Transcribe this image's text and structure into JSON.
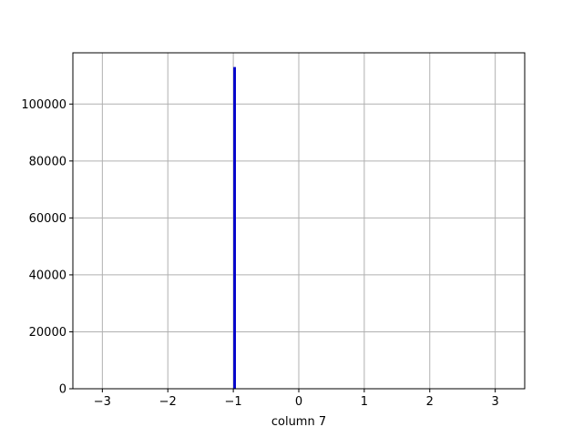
{
  "chart_data": {
    "type": "bar",
    "subtype": "histogram",
    "title": "",
    "xlabel": "column 7",
    "ylabel": "",
    "xlim": [
      -3.45,
      3.45
    ],
    "ylim": [
      0,
      118000
    ],
    "grid": true,
    "legend": "none",
    "x_ticks": [
      {
        "value": -3,
        "label": "−3"
      },
      {
        "value": -2,
        "label": "−2"
      },
      {
        "value": -1,
        "label": "−1"
      },
      {
        "value": 0,
        "label": "0"
      },
      {
        "value": 1,
        "label": "1"
      },
      {
        "value": 2,
        "label": "2"
      },
      {
        "value": 3,
        "label": "3"
      }
    ],
    "y_ticks": [
      {
        "value": 0,
        "label": "0"
      },
      {
        "value": 20000,
        "label": "20000"
      },
      {
        "value": 40000,
        "label": "40000"
      },
      {
        "value": 60000,
        "label": "60000"
      },
      {
        "value": 80000,
        "label": "80000"
      },
      {
        "value": 100000,
        "label": "100000"
      }
    ],
    "bars": [
      {
        "x_start": -1.0,
        "x_end": -0.96,
        "value": 113000
      }
    ],
    "colors": {
      "bar": "#0000cc",
      "grid": "#b0b0b0",
      "axis": "#000000"
    }
  }
}
